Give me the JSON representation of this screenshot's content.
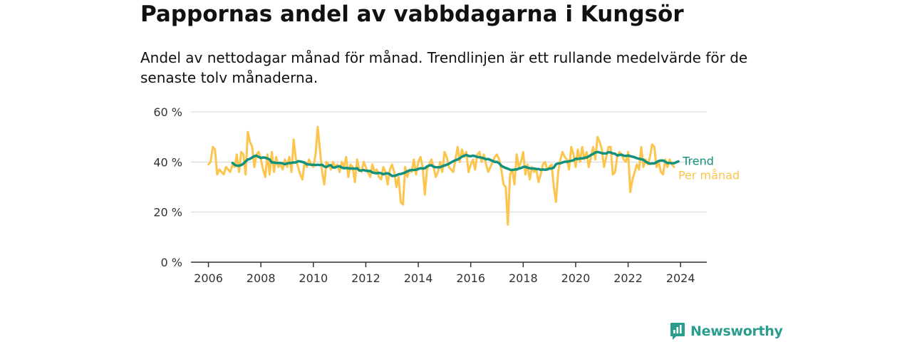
{
  "header": {
    "title": "Pappornas andel av vabbdagarna i Kungsör",
    "subtitle": "Andel av nettodagar månad för månad. Trendlinjen är ett rullande medelvärde för de senaste tolv månaderna."
  },
  "brand": {
    "name": "Newsworthy",
    "icon": "newsworthy-logo-icon",
    "color": "#2a9d8f"
  },
  "chart_data": {
    "type": "line",
    "title": "Pappornas andel av vabbdagarna i Kungsör",
    "subtitle": "Andel av nettodagar månad för månad. Trendlinjen är ett rullande medelvärde för de senaste tolv månaderna.",
    "xlabel": "",
    "ylabel": "",
    "xlim": [
      "2005-05",
      "2025-01"
    ],
    "ylim": [
      0,
      60
    ],
    "x_ticks": [
      "2006",
      "2008",
      "2010",
      "2012",
      "2014",
      "2016",
      "2018",
      "2020",
      "2022",
      "2024"
    ],
    "y_ticks": [
      "0 %",
      "20 %",
      "40 %",
      "60 %"
    ],
    "grid": "horizontal",
    "legend": "inline labels at line ends (right)",
    "series": [
      {
        "name": "Per månad",
        "color": "#fcc54d",
        "start": "2006-01",
        "values": [
          39,
          40,
          46,
          45,
          35,
          37,
          36,
          35,
          38,
          37,
          36,
          39,
          38,
          43,
          36,
          44,
          43,
          35,
          52,
          48,
          46,
          38,
          43,
          44,
          41,
          37,
          34,
          43,
          35,
          44,
          36,
          42,
          38,
          39,
          37,
          41,
          38,
          42,
          36,
          49,
          41,
          38,
          35,
          33,
          40,
          38,
          41,
          39,
          38,
          43,
          54,
          45,
          36,
          31,
          40,
          39,
          37,
          40,
          38,
          39,
          36,
          40,
          38,
          42,
          34,
          39,
          38,
          32,
          41,
          37,
          36,
          40,
          38,
          36,
          34,
          39,
          36,
          37,
          34,
          33,
          38,
          36,
          31,
          37,
          39,
          36,
          30,
          34,
          24,
          23,
          38,
          34,
          37,
          36,
          41,
          35,
          40,
          42,
          38,
          27,
          37,
          39,
          41,
          38,
          34,
          36,
          40,
          36,
          44,
          42,
          38,
          37,
          36,
          41,
          46,
          40,
          45,
          42,
          44,
          36,
          39,
          41,
          37,
          43,
          44,
          40,
          43,
          39,
          36,
          38,
          40,
          42,
          43,
          41,
          37,
          31,
          30,
          15,
          35,
          37,
          31,
          43,
          38,
          40,
          44,
          35,
          39,
          33,
          38,
          36,
          37,
          32,
          35,
          39,
          40,
          37,
          38,
          39,
          30,
          24,
          36,
          41,
          44,
          42,
          41,
          37,
          46,
          43,
          38,
          45,
          40,
          46,
          41,
          44,
          38,
          42,
          46,
          41,
          50,
          48,
          45,
          38,
          42,
          46,
          46,
          35,
          36,
          42,
          44,
          43,
          41,
          40,
          44,
          28,
          33,
          36,
          39,
          37,
          46,
          38,
          41,
          39,
          42,
          47,
          46,
          38,
          40,
          36,
          35,
          41,
          38,
          41,
          39,
          38
        ]
      },
      {
        "name": "Trend",
        "color": "#12927c",
        "start": "2006-12",
        "values": [
          39.6,
          38.9,
          38.5,
          38.5,
          38.8,
          39.3,
          40.2,
          41.0,
          41.2,
          41.8,
          42.3,
          42.5,
          42.0,
          41.6,
          41.8,
          41.7,
          41.4,
          41.0,
          39.8,
          39.8,
          39.6,
          39.6,
          39.6,
          39.4,
          39.1,
          39.4,
          39.6,
          39.6,
          39.8,
          39.8,
          40.3,
          40.2,
          40.0,
          39.7,
          39.1,
          39.0,
          38.9,
          38.9,
          38.8,
          38.9,
          38.8,
          38.9,
          38.2,
          38.0,
          38.6,
          38.7,
          37.8,
          37.8,
          38.2,
          38.3,
          37.8,
          37.5,
          37.6,
          37.5,
          37.4,
          37.4,
          37.3,
          37.5,
          36.6,
          36.6,
          36.8,
          36.5,
          36.4,
          36.4,
          35.8,
          35.6,
          35.5,
          35.7,
          35.5,
          35.1,
          35.4,
          35.5,
          35.1,
          34.4,
          34.5,
          34.7,
          35.1,
          35.2,
          35.5,
          35.8,
          36.3,
          36.6,
          36.8,
          36.8,
          36.9,
          37.2,
          37.5,
          37.4,
          37.5,
          38.2,
          38.6,
          38.7,
          38.1,
          37.9,
          37.9,
          37.9,
          38.3,
          38.6,
          38.9,
          39.3,
          39.8,
          40.3,
          40.7,
          41.0,
          41.5,
          42.1,
          42.5,
          42.8,
          42.4,
          42.3,
          42.5,
          42.3,
          42.0,
          41.9,
          41.7,
          41.5,
          41.1,
          41.2,
          40.8,
          40.4,
          40.0,
          40.0,
          39.5,
          38.5,
          38.0,
          37.6,
          37.3,
          36.9,
          36.8,
          37.0,
          37.0,
          37.4,
          37.6,
          38.0,
          38.1,
          37.7,
          37.5,
          37.4,
          37.4,
          37.2,
          37.2,
          36.9,
          37.0,
          36.9,
          37.0,
          37.4,
          37.4,
          37.8,
          39.1,
          39.4,
          39.5,
          39.8,
          40.1,
          40.1,
          40.3,
          40.5,
          40.7,
          41.3,
          41.2,
          41.4,
          41.4,
          41.7,
          41.8,
          42.2,
          42.8,
          43.2,
          43.8,
          44.0,
          43.8,
          43.5,
          43.4,
          43.4,
          43.9,
          43.8,
          43.4,
          43.3,
          42.6,
          42.8,
          42.9,
          42.5,
          42.4,
          42.6,
          42.3,
          42.1,
          41.9,
          41.5,
          41.3,
          41.1,
          40.9,
          40.1,
          39.7,
          39.3,
          39.4,
          39.4,
          39.9,
          40.4,
          40.6,
          40.6,
          40.1,
          39.6,
          39.6,
          39.5,
          39.5,
          39.9,
          40.2
        ]
      }
    ]
  }
}
